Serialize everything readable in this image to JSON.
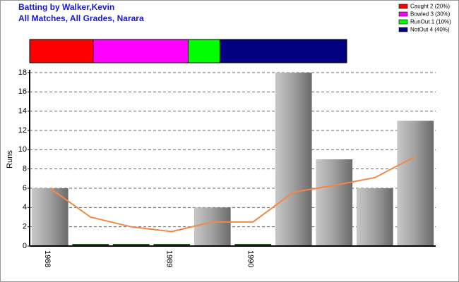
{
  "chart_data": {
    "type": "bar",
    "title": "Batting by Walker,Kevin",
    "subtitle": "All Matches, All Grades, Narara",
    "ylabel": "Runs",
    "categories": [
      "1988",
      null,
      null,
      "1989",
      null,
      "1990",
      null,
      null,
      null,
      null
    ],
    "values": [
      6,
      0,
      0,
      0,
      4,
      0,
      18,
      9,
      6,
      13
    ],
    "zero_color": "#1a5c1a",
    "trend_values": [
      6,
      3,
      2,
      1.5,
      2.5,
      2.5,
      5.6,
      6.3,
      7.1,
      9.3
    ],
    "trend_color": "#f0884a",
    "ylim": [
      0,
      18
    ],
    "yticks": [
      0,
      2,
      4,
      6,
      8,
      10,
      12,
      14,
      16,
      18
    ],
    "grid": true,
    "outcomes": [
      {
        "label": "Caught 2 (20%)",
        "value": 20,
        "color": "#ff0000"
      },
      {
        "label": "Bowled 3 (30%)",
        "value": 30,
        "color": "#ff00ff"
      },
      {
        "label": "RunOut 1 (10%)",
        "value": 10,
        "color": "#00ff00"
      },
      {
        "label": "NotOut 4 (40%)",
        "value": 40,
        "color": "#000080"
      }
    ]
  }
}
